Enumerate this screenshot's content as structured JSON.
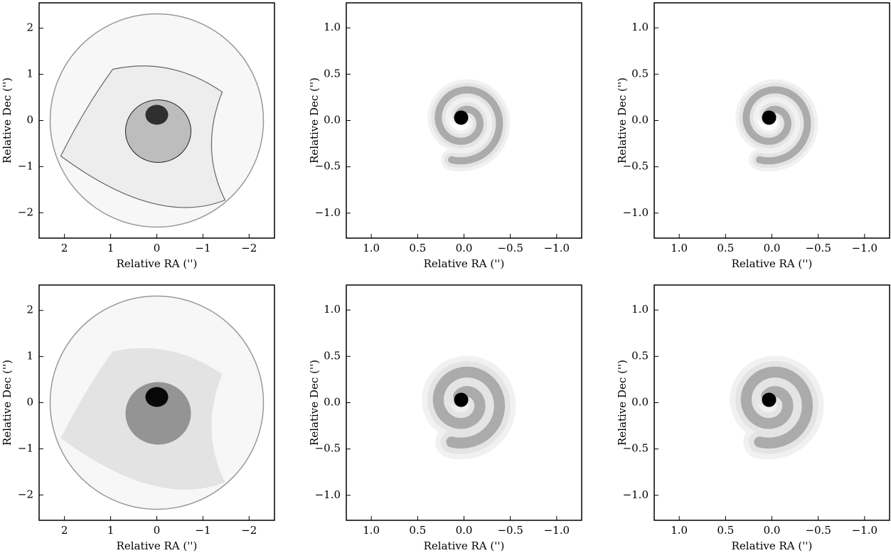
{
  "chart_data": [
    {
      "type": "image",
      "xlabel": "Relative RA ('')",
      "ylabel": "Relative Dec ('')",
      "style": "lobes",
      "xlim": [
        2.55,
        -2.55
      ],
      "ylim": [
        -2.55,
        2.55
      ],
      "xticks": [
        2,
        1,
        0,
        {
          "value": -1,
          "label": "−1"
        },
        {
          "value": -2,
          "label": "−2"
        }
      ],
      "yticks": [
        {
          "value": -2,
          "label": "−2"
        },
        {
          "value": -1,
          "label": "−1"
        },
        0,
        1,
        2
      ]
    },
    {
      "type": "image",
      "xlabel": "Relative RA ('')",
      "ylabel": "Relative Dec ('')",
      "style": "spiral",
      "xlim": [
        1.27,
        -1.27
      ],
      "ylim": [
        -1.27,
        1.27
      ],
      "xticks": [
        {
          "value": 1,
          "label": "1.0"
        },
        0.5,
        {
          "value": 0,
          "label": "0.0"
        },
        {
          "value": -0.5,
          "label": "−0.5"
        },
        {
          "value": -1,
          "label": "−1.0"
        }
      ],
      "yticks": [
        {
          "value": -1,
          "label": "−1.0"
        },
        {
          "value": -0.5,
          "label": "−0.5"
        },
        {
          "value": 0,
          "label": "0.0"
        },
        0.5,
        {
          "value": 1,
          "label": "1.0"
        }
      ]
    },
    {
      "type": "image",
      "xlabel": "Relative RA ('')",
      "ylabel": "Relative Dec ('')",
      "style": "spiral",
      "xlim": [
        1.27,
        -1.27
      ],
      "ylim": [
        -1.27,
        1.27
      ],
      "xticks": [
        {
          "value": 1,
          "label": "1.0"
        },
        0.5,
        {
          "value": 0,
          "label": "0.0"
        },
        {
          "value": -0.5,
          "label": "−0.5"
        },
        {
          "value": -1,
          "label": "−1.0"
        }
      ],
      "yticks": [
        {
          "value": -1,
          "label": "−1.0"
        },
        {
          "value": -0.5,
          "label": "−0.5"
        },
        {
          "value": 0,
          "label": "0.0"
        },
        0.5,
        {
          "value": 1,
          "label": "1.0"
        }
      ]
    },
    {
      "type": "image",
      "xlabel": "Relative RA ('')",
      "ylabel": "Relative Dec ('')",
      "style": "lobes",
      "xlim": [
        2.55,
        -2.55
      ],
      "ylim": [
        -2.55,
        2.55
      ],
      "xticks": [
        2,
        1,
        0,
        {
          "value": -1,
          "label": "−1"
        },
        {
          "value": -2,
          "label": "−2"
        }
      ],
      "yticks": [
        {
          "value": -2,
          "label": "−2"
        },
        {
          "value": -1,
          "label": "−1"
        },
        0,
        1,
        2
      ]
    },
    {
      "type": "image",
      "xlabel": "Relative RA ('')",
      "ylabel": "Relative Dec ('')",
      "style": "spiral",
      "xlim": [
        1.27,
        -1.27
      ],
      "ylim": [
        -1.27,
        1.27
      ],
      "xticks": [
        {
          "value": 1,
          "label": "1.0"
        },
        0.5,
        {
          "value": 0,
          "label": "0.0"
        },
        {
          "value": -0.5,
          "label": "−0.5"
        },
        {
          "value": -1,
          "label": "−1.0"
        }
      ],
      "yticks": [
        {
          "value": -1,
          "label": "−1.0"
        },
        {
          "value": -0.5,
          "label": "−0.5"
        },
        {
          "value": 0,
          "label": "0.0"
        },
        0.5,
        {
          "value": 1,
          "label": "1.0"
        }
      ]
    },
    {
      "type": "image",
      "xlabel": "Relative RA ('')",
      "ylabel": "Relative Dec ('')",
      "style": "spiral",
      "xlim": [
        1.27,
        -1.27
      ],
      "ylim": [
        -1.27,
        1.27
      ],
      "xticks": [
        {
          "value": 1,
          "label": "1.0"
        },
        0.5,
        {
          "value": 0,
          "label": "0.0"
        },
        {
          "value": -0.5,
          "label": "−0.5"
        },
        {
          "value": -1,
          "label": "−1.0"
        }
      ],
      "yticks": [
        {
          "value": -1,
          "label": "−1.0"
        },
        {
          "value": -0.5,
          "label": "−0.5"
        },
        {
          "value": 0,
          "label": "0.0"
        },
        0.5,
        {
          "value": 1,
          "label": "1.0"
        }
      ]
    }
  ]
}
